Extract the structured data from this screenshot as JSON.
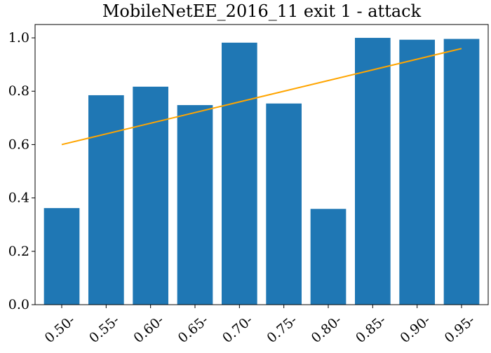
{
  "chart_data": {
    "type": "bar",
    "title": "MobileNetEE_2016_11 exit 1 - attack",
    "xlabel": "",
    "ylabel": "",
    "categories": [
      "0.50-",
      "0.55-",
      "0.60-",
      "0.65-",
      "0.70-",
      "0.75-",
      "0.80-",
      "0.85-",
      "0.90-",
      "0.95-"
    ],
    "series": [
      {
        "type": "bar",
        "values": [
          0.362,
          0.785,
          0.817,
          0.748,
          0.982,
          0.754,
          0.359,
          1.0,
          0.993,
          0.996
        ],
        "color": "#1f77b4"
      },
      {
        "type": "line",
        "values": [
          0.6,
          0.64,
          0.68,
          0.72,
          0.76,
          0.8,
          0.84,
          0.88,
          0.92,
          0.96
        ],
        "color": "#ffa500"
      }
    ],
    "ylim": [
      0,
      1.05
    ],
    "yticks": [
      0.0,
      0.2,
      0.4,
      0.6,
      0.8,
      1.0
    ],
    "ytick_labels": [
      "0.0",
      "0.2",
      "0.4",
      "0.6",
      "0.8",
      "1.0"
    ],
    "grid": false,
    "legend": "none"
  }
}
